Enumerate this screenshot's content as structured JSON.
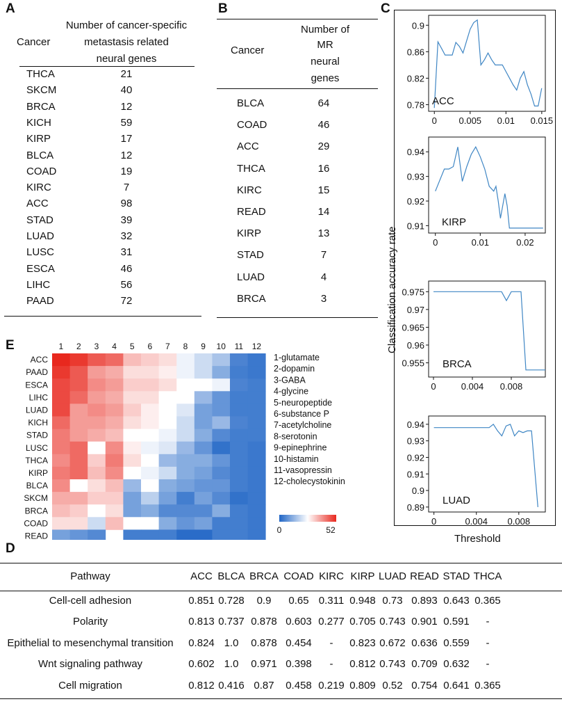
{
  "panels": {
    "a": "A",
    "b": "B",
    "c": "C",
    "d": "D",
    "e": "E"
  },
  "table_a": {
    "col_cancer": "Cancer",
    "col_count_lines": [
      "Number of cancer-specific",
      "metastasis related",
      "neural genes"
    ],
    "rows": [
      {
        "cancer": "THCA",
        "count": "21"
      },
      {
        "cancer": "SKCM",
        "count": "40"
      },
      {
        "cancer": "BRCA",
        "count": "12"
      },
      {
        "cancer": "KICH",
        "count": "59"
      },
      {
        "cancer": "KIRP",
        "count": "17"
      },
      {
        "cancer": "BLCA",
        "count": "12"
      },
      {
        "cancer": "COAD",
        "count": "19"
      },
      {
        "cancer": "KIRC",
        "count": "7"
      },
      {
        "cancer": "ACC",
        "count": "98"
      },
      {
        "cancer": "STAD",
        "count": "39"
      },
      {
        "cancer": "LUAD",
        "count": "32"
      },
      {
        "cancer": "LUSC",
        "count": "31"
      },
      {
        "cancer": "ESCA",
        "count": "46"
      },
      {
        "cancer": "LIHC",
        "count": "56"
      },
      {
        "cancer": "PAAD",
        "count": "72"
      }
    ]
  },
  "table_b": {
    "col_cancer": "Cancer",
    "col_count_lines": [
      "Number of",
      "MR",
      "neural",
      "genes"
    ],
    "rows": [
      {
        "cancer": "BLCA",
        "count": "64"
      },
      {
        "cancer": "COAD",
        "count": "46"
      },
      {
        "cancer": "ACC",
        "count": "29"
      },
      {
        "cancer": "THCA",
        "count": "16"
      },
      {
        "cancer": "KIRC",
        "count": "15"
      },
      {
        "cancer": "READ",
        "count": "14"
      },
      {
        "cancer": "KIRP",
        "count": "13"
      },
      {
        "cancer": "STAD",
        "count": "7"
      },
      {
        "cancer": "LUAD",
        "count": "4"
      },
      {
        "cancer": "BRCA",
        "count": "3"
      }
    ]
  },
  "chart_data": [
    {
      "type": "line",
      "panel": "C",
      "label": "ACC",
      "x": [
        0,
        0.0005,
        0.001,
        0.0015,
        0.002,
        0.0025,
        0.003,
        0.0035,
        0.004,
        0.0045,
        0.005,
        0.0055,
        0.006,
        0.0065,
        0.007,
        0.0075,
        0.008,
        0.0085,
        0.009,
        0.0095,
        0.01,
        0.0105,
        0.011,
        0.0115,
        0.012,
        0.0125,
        0.013,
        0.0135,
        0.014,
        0.0145,
        0.015
      ],
      "y": [
        0.775,
        0.875,
        0.865,
        0.855,
        0.855,
        0.855,
        0.874,
        0.868,
        0.858,
        0.876,
        0.894,
        0.904,
        0.908,
        0.84,
        0.848,
        0.858,
        0.848,
        0.84,
        0.84,
        0.84,
        0.83,
        0.82,
        0.81,
        0.802,
        0.82,
        0.83,
        0.81,
        0.796,
        0.778,
        0.778,
        0.805
      ],
      "xticks": [
        "0",
        "0.005",
        "0.01",
        "0.015"
      ],
      "yticks": [
        "0.9",
        "0.86",
        "0.82",
        "0.78"
      ],
      "xlim": [
        -0.0008,
        0.0155
      ],
      "ylim": [
        0.77,
        0.915
      ]
    },
    {
      "type": "line",
      "panel": "C",
      "label": "KIRP",
      "x": [
        0,
        0.002,
        0.003,
        0.004,
        0.005,
        0.006,
        0.007,
        0.008,
        0.009,
        0.01,
        0.011,
        0.012,
        0.013,
        0.0135,
        0.014,
        0.0145,
        0.0155,
        0.016,
        0.0165,
        0.017,
        0.024
      ],
      "y": [
        0.924,
        0.933,
        0.933,
        0.934,
        0.942,
        0.928,
        0.934,
        0.939,
        0.942,
        0.938,
        0.933,
        0.926,
        0.924,
        0.926,
        0.92,
        0.913,
        0.923,
        0.918,
        0.909,
        0.909,
        0.909
      ],
      "xticks": [
        "0",
        "0.01",
        "0.02"
      ],
      "yticks": [
        "0.94",
        "0.93",
        "0.92",
        "0.91"
      ],
      "xlim": [
        -0.0015,
        0.0245
      ],
      "ylim": [
        0.907,
        0.946
      ]
    },
    {
      "type": "line",
      "panel": "C",
      "label": "BRCA",
      "x": [
        0,
        0.006,
        0.007,
        0.0075,
        0.008,
        0.0085,
        0.009,
        0.0095,
        0.01,
        0.0105,
        0.0115
      ],
      "y": [
        0.975,
        0.975,
        0.975,
        0.9725,
        0.975,
        0.975,
        0.975,
        0.953,
        0.953,
        0.953,
        0.953
      ],
      "xticks": [
        "0",
        "0.004",
        "0.008"
      ],
      "yticks": [
        "0.975",
        "0.97",
        "0.965",
        "0.96",
        "0.955"
      ],
      "xlim": [
        -0.0005,
        0.0115
      ],
      "ylim": [
        0.951,
        0.978
      ]
    },
    {
      "type": "line",
      "panel": "C",
      "label": "LUAD",
      "x": [
        0,
        0.0052,
        0.0056,
        0.006,
        0.0064,
        0.0068,
        0.0072,
        0.0076,
        0.008,
        0.0084,
        0.0088,
        0.0092,
        0.0098
      ],
      "y": [
        0.938,
        0.938,
        0.94,
        0.936,
        0.933,
        0.939,
        0.94,
        0.933,
        0.936,
        0.935,
        0.936,
        0.936,
        0.89
      ],
      "xticks": [
        "0",
        "0.004",
        "0.008"
      ],
      "yticks": [
        "0.94",
        "0.93",
        "0.92",
        "0.91",
        "0.9",
        "0.89"
      ],
      "xlim": [
        -0.0005,
        0.0105
      ],
      "ylim": [
        0.887,
        0.945
      ]
    },
    {
      "type": "heatmap",
      "panel": "E",
      "rows": [
        "ACC",
        "PAAD",
        "ESCA",
        "LIHC",
        "LUAD",
        "KICH",
        "STAD",
        "LUSC",
        "THCA",
        "KIRP",
        "BLCA",
        "SKCM",
        "BRCA",
        "COAD",
        "READ"
      ],
      "columns": [
        "1",
        "2",
        "3",
        "4",
        "5",
        "6",
        "7",
        "8",
        "9",
        "10",
        "11",
        "12"
      ],
      "values": [
        [
          52,
          50,
          46,
          44,
          34,
          32,
          30,
          24,
          20,
          16,
          5,
          3
        ],
        [
          50,
          46,
          38,
          36,
          30,
          30,
          28,
          24,
          20,
          12,
          4,
          3
        ],
        [
          48,
          46,
          40,
          38,
          32,
          32,
          30,
          26,
          26,
          24,
          5,
          4
        ],
        [
          48,
          44,
          38,
          36,
          30,
          30,
          26,
          26,
          14,
          8,
          4,
          4
        ],
        [
          48,
          38,
          40,
          38,
          32,
          28,
          26,
          22,
          10,
          8,
          4,
          4
        ],
        [
          44,
          38,
          38,
          36,
          30,
          28,
          26,
          20,
          10,
          14,
          5,
          4
        ],
        [
          42,
          38,
          36,
          34,
          26,
          26,
          24,
          20,
          12,
          6,
          4,
          4
        ],
        [
          42,
          44,
          26,
          40,
          28,
          24,
          22,
          14,
          8,
          2,
          4,
          3
        ],
        [
          40,
          44,
          32,
          42,
          30,
          26,
          14,
          12,
          12,
          8,
          4,
          3
        ],
        [
          42,
          44,
          34,
          40,
          26,
          24,
          20,
          12,
          10,
          6,
          4,
          3
        ],
        [
          40,
          26,
          30,
          34,
          14,
          26,
          12,
          10,
          8,
          8,
          4,
          3
        ],
        [
          36,
          36,
          32,
          32,
          10,
          18,
          10,
          4,
          10,
          6,
          2,
          3
        ],
        [
          34,
          32,
          26,
          30,
          10,
          12,
          6,
          6,
          6,
          12,
          4,
          3
        ],
        [
          30,
          30,
          20,
          34,
          26,
          26,
          12,
          8,
          10,
          4,
          4,
          3
        ],
        [
          10,
          8,
          6,
          26,
          4,
          4,
          4,
          1,
          1,
          4,
          4,
          3
        ]
      ],
      "gap_cells": [
        [
          14,
          3
        ]
      ],
      "colorbar": {
        "min": 0,
        "max": 52,
        "min_label": "0",
        "max_label": "52"
      },
      "legend": [
        "1-glutamate",
        "2-dopamin",
        "3-GABA",
        "4-glycine",
        "5-neuropeptide",
        "6-substance P",
        "7-acetylcholine",
        "8-serotonin",
        "9-epinephrine",
        "10-histamin",
        "11-vasopressin",
        "12-cholecystokinin"
      ],
      "colors": {
        "low": "#2166c6",
        "mid": "#ffffff",
        "high": "#e8281e"
      }
    }
  ],
  "panel_c_axes": {
    "ylabel": "Classification accuracy rate",
    "xlabel": "Threshold"
  },
  "table_d": {
    "headers": [
      "Pathway",
      "ACC",
      "BLCA",
      "BRCA",
      "COAD",
      "KIRC",
      "KIRP",
      "LUAD",
      "READ",
      "STAD",
      "THCA"
    ],
    "rows": [
      [
        "Cell-cell adhesion",
        "0.851",
        "0.728",
        "0.9",
        "0.65",
        "0.311",
        "0.948",
        "0.73",
        "0.893",
        "0.643",
        "0.365"
      ],
      [
        "Polarity",
        "0.813",
        "0.737",
        "0.878",
        "0.603",
        "0.277",
        "0.705",
        "0.743",
        "0.901",
        "0.591",
        "-"
      ],
      [
        "Epithelial to mesenchymal transition",
        "0.824",
        "1.0",
        "0.878",
        "0.454",
        "-",
        "0.823",
        "0.672",
        "0.636",
        "0.559",
        "-"
      ],
      [
        "Wnt signaling pathway",
        "0.602",
        "1.0",
        "0.971",
        "0.398",
        "-",
        "0.812",
        "0.743",
        "0.709",
        "0.632",
        "-"
      ],
      [
        "Cell migration",
        "0.812",
        "0.416",
        "0.87",
        "0.458",
        "0.219",
        "0.809",
        "0.52",
        "0.754",
        "0.641",
        "0.365"
      ]
    ]
  }
}
